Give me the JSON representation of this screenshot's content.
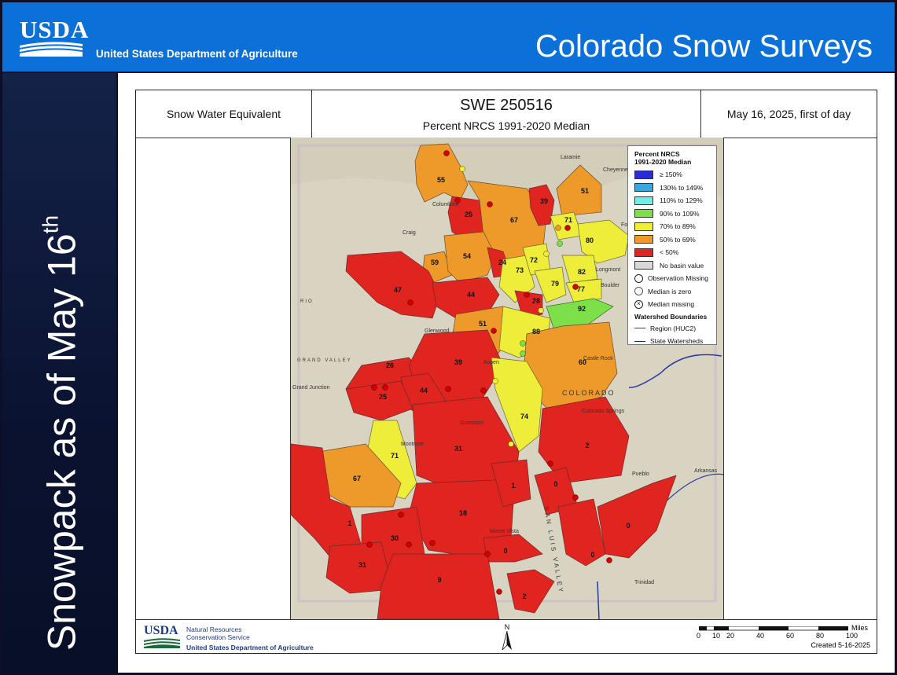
{
  "header": {
    "agency_abbr": "USDA",
    "department": "United States Department of Agriculture",
    "title": "Colorado Snow Surveys"
  },
  "sidebar": {
    "text": "Snowpack as of May 16",
    "suffix": "th"
  },
  "map_header": {
    "left": "Snow Water Equivalent",
    "title": "SWE 250516",
    "subtitle": "Percent NRCS 1991-2020 Median",
    "date": "May 16, 2025, first of day"
  },
  "legend": {
    "title_line1": "Percent NRCS",
    "title_line2": "1991-2020 Median",
    "classes": [
      {
        "label": "≥ 150%",
        "color": "#2a2ad6"
      },
      {
        "label": "130% to 149%",
        "color": "#3aa6df"
      },
      {
        "label": "110% to 129%",
        "color": "#6ff0e6"
      },
      {
        "label": "90% to 109%",
        "color": "#7de04a"
      },
      {
        "label": "70% to 89%",
        "color": "#eeee3a"
      },
      {
        "label": "50% to 69%",
        "color": "#ee9a2a"
      },
      {
        "label": "< 50%",
        "color": "#e0241f"
      },
      {
        "label": "No basin value",
        "color": "#d8d8d8"
      }
    ],
    "symbols": [
      {
        "label": "Observation Missing"
      },
      {
        "label": "Median is zero"
      },
      {
        "label": "Median missing"
      }
    ],
    "boundaries_title": "Watershed Boundaries",
    "boundaries": [
      {
        "label": "Region (HUC2)",
        "color": "#2a3aa8"
      },
      {
        "label": "State Watersheds",
        "color": "#1a2a70"
      }
    ]
  },
  "places": [
    "Laramie",
    "Cheyenne",
    "Columbine",
    "Craig",
    "Boulder",
    "Longmont",
    "Fort",
    "Grand Junction",
    "Glenwood",
    "Aspen",
    "Gunnison",
    "Montrose",
    "Colorado Springs",
    "Castle Rock",
    "Pueblo",
    "Arkansas",
    "Monte Vista",
    "Trinidad",
    "COLORADO",
    "SAN LUIS VALLEY",
    "GRAND VALLEY",
    "RIO"
  ],
  "basins": [
    {
      "label": "55",
      "value": 55,
      "color": "#ee9a2a"
    },
    {
      "label": "25",
      "value": 25,
      "color": "#e0241f"
    },
    {
      "label": "67",
      "value": 67,
      "color": "#ee9a2a"
    },
    {
      "label": "39",
      "value": 39,
      "color": "#e0241f"
    },
    {
      "label": "51",
      "value": 51,
      "color": "#ee9a2a"
    },
    {
      "label": "71",
      "value": 71,
      "color": "#eeee3a"
    },
    {
      "label": "80",
      "value": 80,
      "color": "#eeee3a"
    },
    {
      "label": "59",
      "value": 59,
      "color": "#ee9a2a"
    },
    {
      "label": "54",
      "value": 54,
      "color": "#ee9a2a"
    },
    {
      "label": "24",
      "value": 24,
      "color": "#e0241f"
    },
    {
      "label": "73",
      "value": 73,
      "color": "#eeee3a"
    },
    {
      "label": "72",
      "value": 72,
      "color": "#eeee3a"
    },
    {
      "label": "79",
      "value": 79,
      "color": "#eeee3a"
    },
    {
      "label": "82",
      "value": 82,
      "color": "#eeee3a"
    },
    {
      "label": "77",
      "value": 77,
      "color": "#eeee3a"
    },
    {
      "label": "47",
      "value": 47,
      "color": "#e0241f"
    },
    {
      "label": "44",
      "value": 44,
      "color": "#e0241f"
    },
    {
      "label": "28",
      "value": 28,
      "color": "#e0241f"
    },
    {
      "label": "92",
      "value": 92,
      "color": "#7de04a"
    },
    {
      "label": "51",
      "value": 51,
      "color": "#ee9a2a"
    },
    {
      "label": "88",
      "value": 88,
      "color": "#eeee3a"
    },
    {
      "label": "60",
      "value": 60,
      "color": "#ee9a2a"
    },
    {
      "label": "26",
      "value": 26,
      "color": "#e0241f"
    },
    {
      "label": "39",
      "value": 39,
      "color": "#e0241f"
    },
    {
      "label": "44",
      "value": 44,
      "color": "#e0241f"
    },
    {
      "label": "25",
      "value": 25,
      "color": "#e0241f"
    },
    {
      "label": "74",
      "value": 74,
      "color": "#eeee3a"
    },
    {
      "label": "71",
      "value": 71,
      "color": "#eeee3a"
    },
    {
      "label": "31",
      "value": 31,
      "color": "#e0241f"
    },
    {
      "label": "2",
      "value": 2,
      "color": "#e0241f"
    },
    {
      "label": "67",
      "value": 67,
      "color": "#ee9a2a"
    },
    {
      "label": "1",
      "value": 1,
      "color": "#e0241f"
    },
    {
      "label": "0",
      "value": 0,
      "color": "#e0241f"
    },
    {
      "label": "18",
      "value": 18,
      "color": "#e0241f"
    },
    {
      "label": "1",
      "value": 1,
      "color": "#e0241f"
    },
    {
      "label": "30",
      "value": 30,
      "color": "#e0241f"
    },
    {
      "label": "0",
      "value": 0,
      "color": "#e0241f"
    },
    {
      "label": "0",
      "value": 0,
      "color": "#e0241f"
    },
    {
      "label": "0",
      "value": 0,
      "color": "#e0241f"
    },
    {
      "label": "31",
      "value": 31,
      "color": "#e0241f"
    },
    {
      "label": "9",
      "value": 9,
      "color": "#e0241f"
    },
    {
      "label": "2",
      "value": 2,
      "color": "#e0241f"
    }
  ],
  "footer": {
    "nrcs_line1": "Natural Resources",
    "nrcs_line2": "Conservation Service",
    "nrcs_line3": "United States Department of Agriculture",
    "north": "N",
    "scale_labels": [
      "0",
      "10",
      "20",
      "40",
      "60",
      "80",
      "100"
    ],
    "scale_unit": "Miles",
    "created": "Created 5-16-2025"
  }
}
